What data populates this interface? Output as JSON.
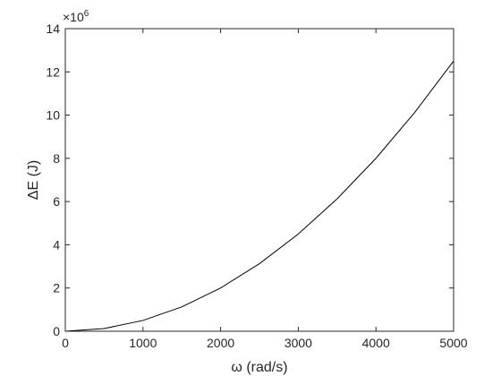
{
  "chart_data": {
    "type": "line",
    "title": "",
    "xlabel": "ω (rad/s)",
    "ylabel": "ΔE (J)",
    "y_exponent_label": "×10",
    "y_exponent": "6",
    "xlim": [
      0,
      5000
    ],
    "ylim": [
      0,
      14
    ],
    "x_ticks": [
      0,
      1000,
      2000,
      3000,
      4000,
      5000
    ],
    "y_ticks": [
      0,
      2,
      4,
      6,
      8,
      10,
      12,
      14
    ],
    "x_tick_labels": [
      "0",
      "1000",
      "2000",
      "3000",
      "4000",
      "5000"
    ],
    "y_tick_labels": [
      "0",
      "2",
      "4",
      "6",
      "8",
      "10",
      "12",
      "14"
    ],
    "grid": false,
    "series": [
      {
        "color": "#000000",
        "x": [
          0,
          500,
          1000,
          1500,
          2000,
          2500,
          3000,
          3500,
          4000,
          4500,
          5000
        ],
        "y": [
          0,
          0.125,
          0.5,
          1.125,
          2.0,
          3.125,
          4.5,
          6.125,
          8.0,
          10.125,
          12.5
        ]
      }
    ]
  }
}
